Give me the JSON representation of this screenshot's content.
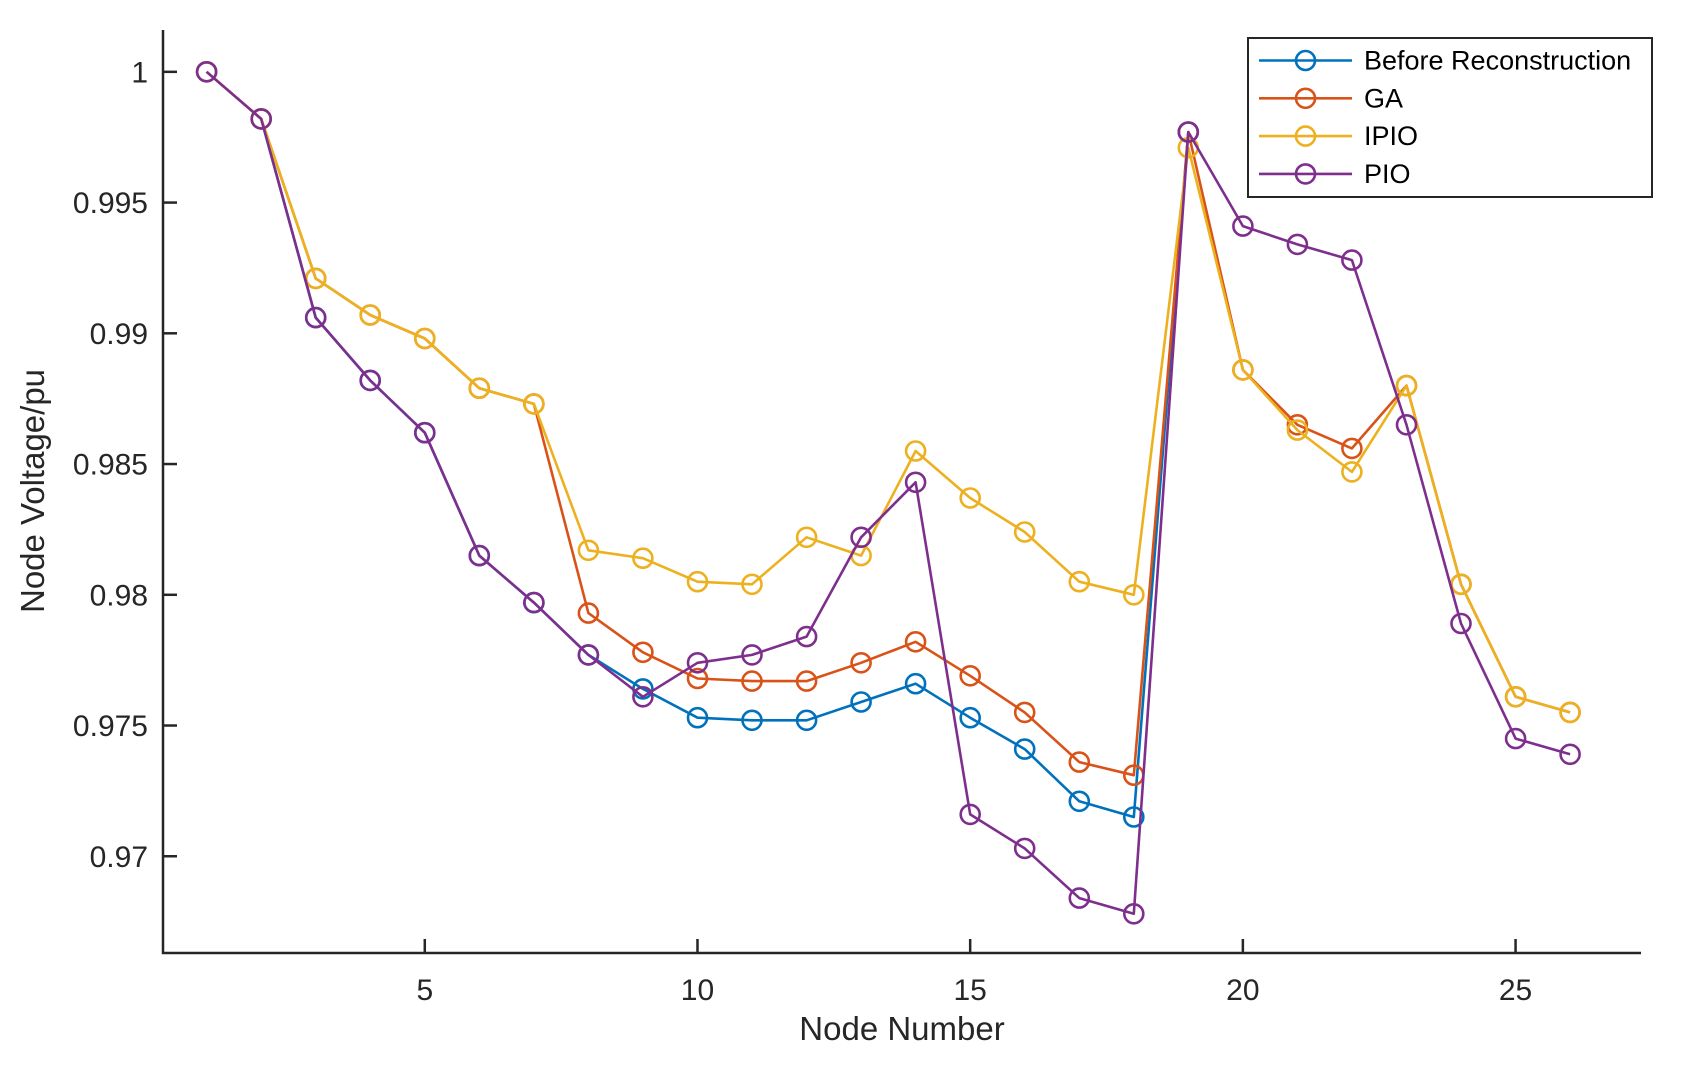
{
  "figure": {
    "background": "#ffffff",
    "axis_color": "#262626"
  },
  "chart_data": {
    "type": "line",
    "title": "",
    "xlabel": "Node Number",
    "ylabel": "Node Voltage/pu",
    "xlim": [
      0.2,
      27.3
    ],
    "ylim": [
      0.9663,
      1.0016
    ],
    "xticks": [
      5,
      10,
      15,
      20,
      25
    ],
    "xtick_labels": [
      "5",
      "10",
      "15",
      "20",
      "25"
    ],
    "yticks": [
      0.97,
      0.975,
      0.98,
      0.985,
      0.99,
      0.995,
      1
    ],
    "ytick_labels": [
      "0.97",
      "0.975",
      "0.98",
      "0.985",
      "0.99",
      "0.995",
      "1"
    ],
    "grid": false,
    "legend_position": "top-right",
    "marker": "circle",
    "series": [
      {
        "name": "Before Reconstruction",
        "color": "#0072BD",
        "x": [
          1,
          2,
          3,
          4,
          5,
          6,
          7,
          8,
          9,
          10,
          11,
          12,
          13,
          14,
          15,
          16,
          17,
          18,
          19
        ],
        "values": [
          1.0,
          0.9982,
          0.9906,
          0.9882,
          0.9862,
          0.9815,
          0.9797,
          0.9777,
          0.9764,
          0.9753,
          0.9752,
          0.9752,
          0.9759,
          0.9766,
          0.9753,
          0.9741,
          0.9721,
          0.9715,
          0.9977
        ]
      },
      {
        "name": "GA",
        "color": "#D95319",
        "x": [
          1,
          2,
          3,
          4,
          5,
          6,
          7,
          8,
          9,
          10,
          11,
          12,
          13,
          14,
          15,
          16,
          17,
          18,
          19,
          20,
          21,
          22,
          23,
          24,
          25,
          26
        ],
        "values": [
          1.0,
          0.9982,
          0.9921,
          0.9907,
          0.9898,
          0.9879,
          0.9873,
          0.9793,
          0.9778,
          0.9768,
          0.9767,
          0.9767,
          0.9774,
          0.9782,
          0.9769,
          0.9755,
          0.9736,
          0.9731,
          0.9977,
          0.9886,
          0.9865,
          0.9856,
          0.988,
          0.9804,
          0.9761,
          0.9755
        ]
      },
      {
        "name": "IPIO",
        "color": "#EDB120",
        "x": [
          1,
          2,
          3,
          4,
          5,
          6,
          7,
          8,
          9,
          10,
          11,
          12,
          13,
          14,
          15,
          16,
          17,
          18,
          19,
          20,
          21,
          22,
          23,
          24,
          25,
          26
        ],
        "values": [
          1.0,
          0.9982,
          0.9921,
          0.9907,
          0.9898,
          0.9879,
          0.9873,
          0.9817,
          0.9814,
          0.9805,
          0.9804,
          0.9822,
          0.9815,
          0.9855,
          0.9837,
          0.9824,
          0.9805,
          0.98,
          0.9971,
          0.9886,
          0.9863,
          0.9847,
          0.988,
          0.9804,
          0.9761,
          0.9755
        ]
      },
      {
        "name": "PIO",
        "color": "#7E2F8E",
        "x": [
          1,
          2,
          3,
          4,
          5,
          6,
          7,
          8,
          9,
          10,
          11,
          12,
          13,
          14,
          15,
          16,
          17,
          18,
          19,
          20,
          21,
          22,
          23,
          24,
          25,
          26
        ],
        "values": [
          1.0,
          0.9982,
          0.9906,
          0.9882,
          0.9862,
          0.9815,
          0.9797,
          0.9777,
          0.9761,
          0.9774,
          0.9777,
          0.9784,
          0.9822,
          0.9843,
          0.9716,
          0.9703,
          0.9684,
          0.9678,
          0.9977,
          0.9941,
          0.9934,
          0.9928,
          0.9865,
          0.9789,
          0.9745,
          0.9739
        ]
      }
    ]
  }
}
